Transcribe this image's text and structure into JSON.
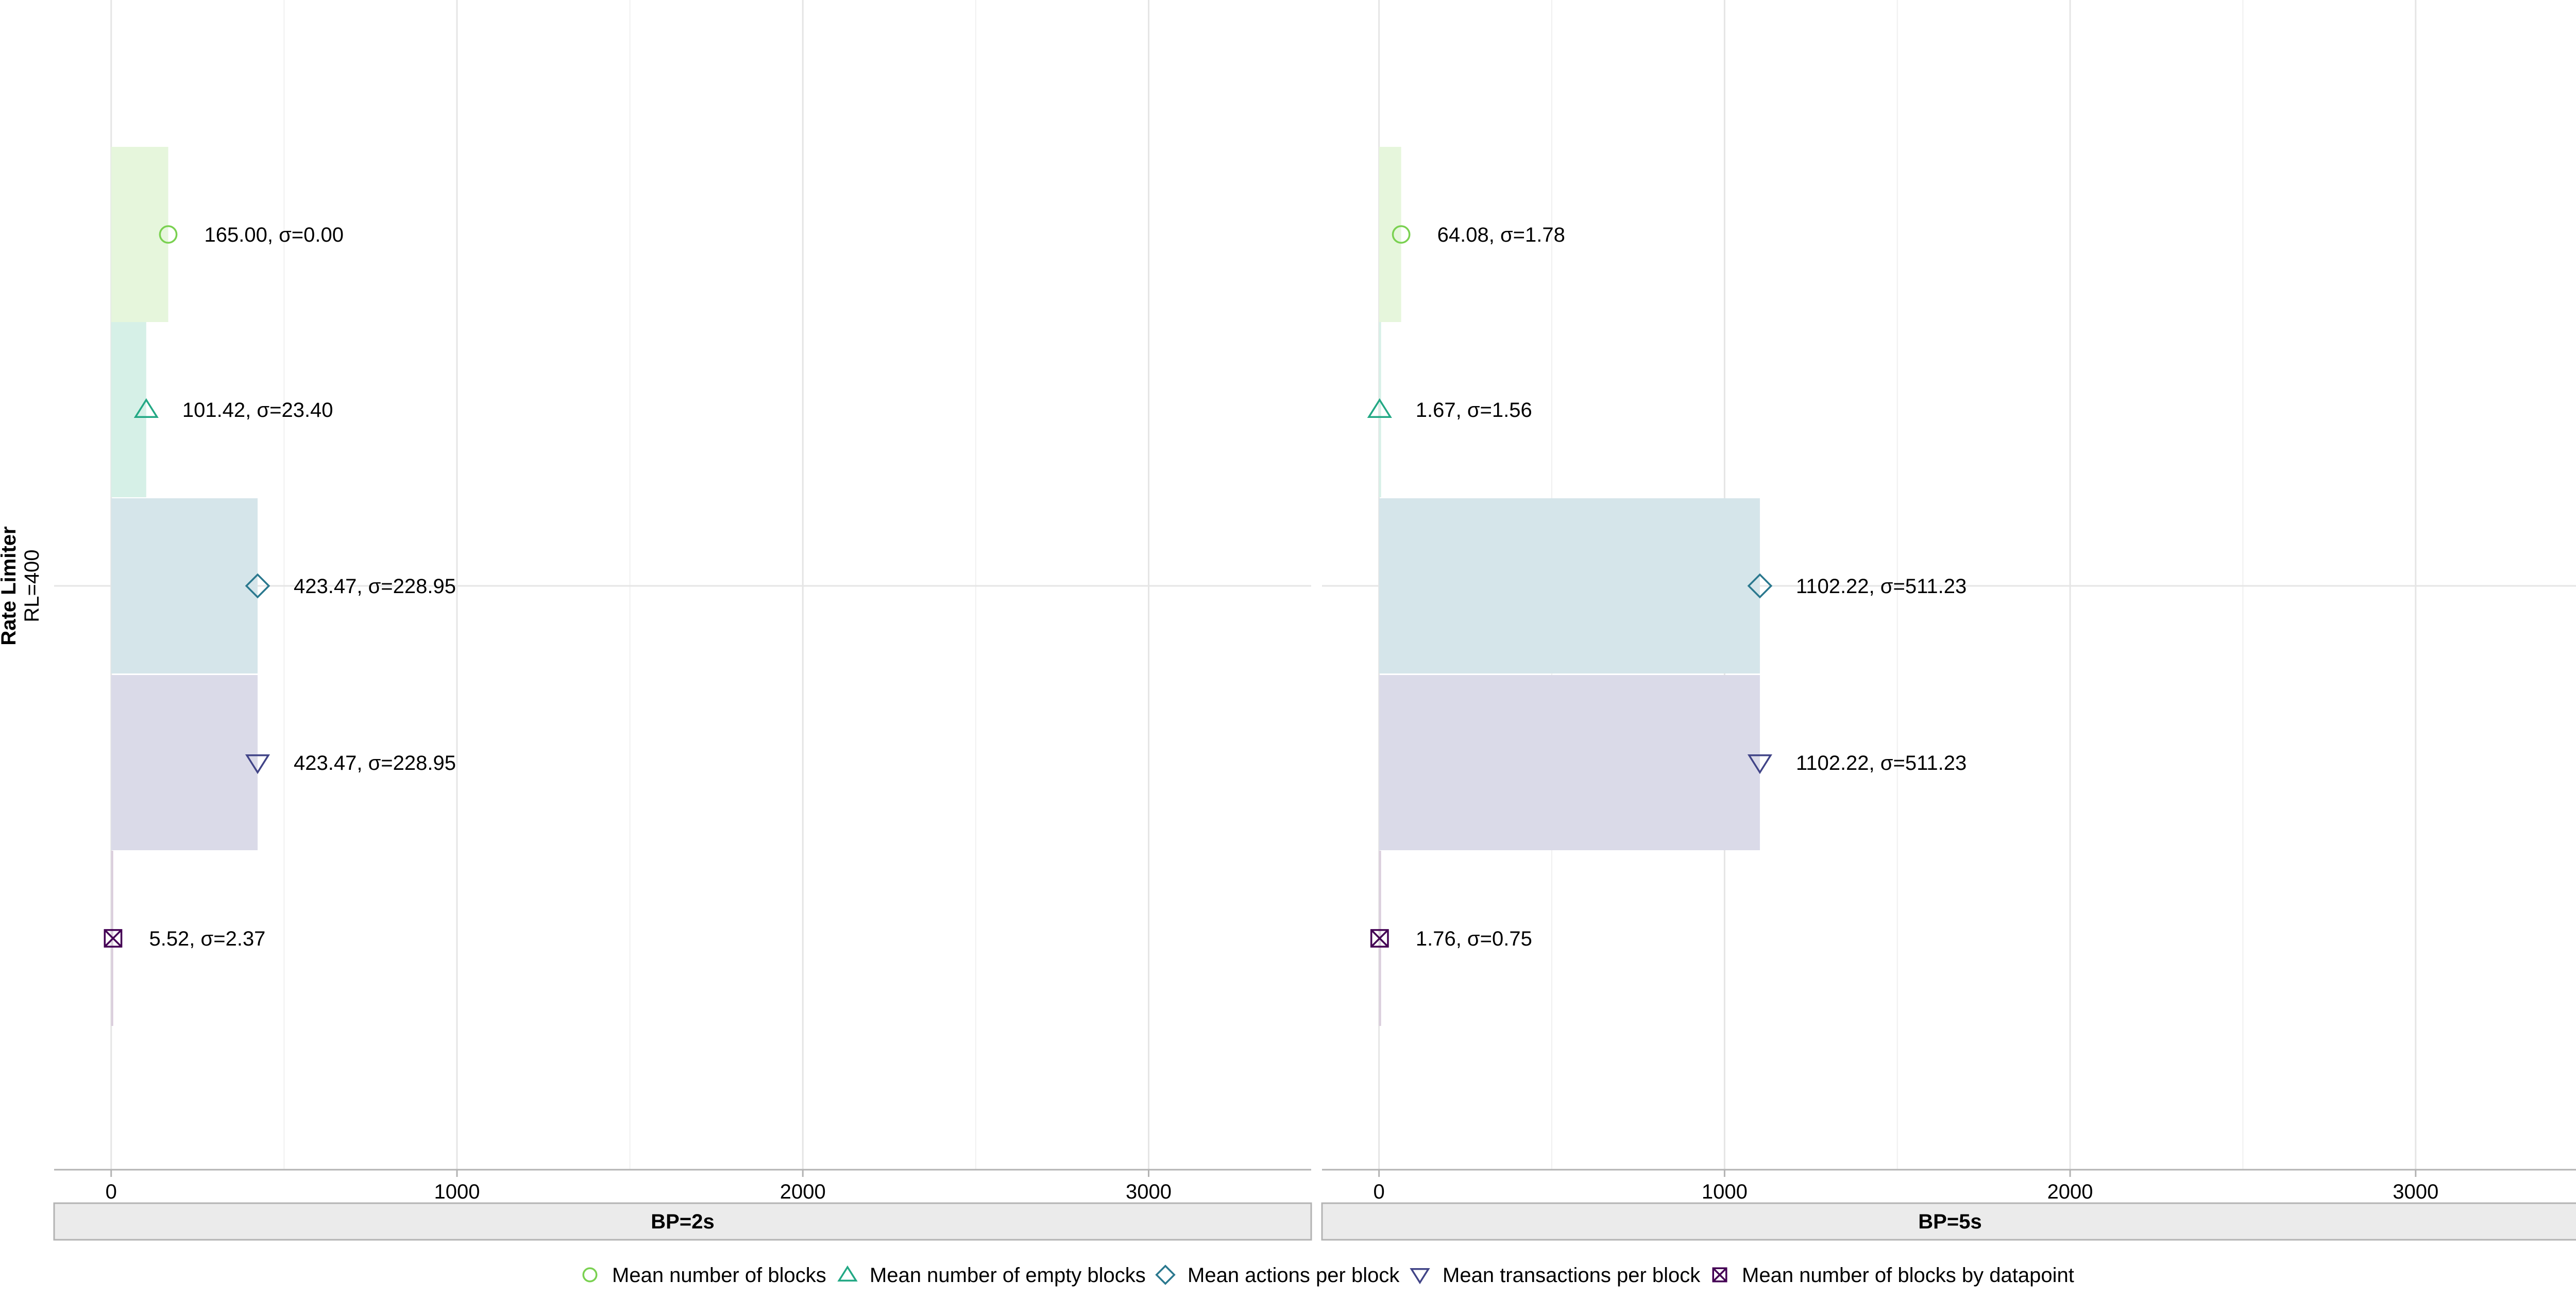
{
  "chart_data": {
    "type": "bar",
    "row_strip": {
      "title": "Rate Limiter",
      "label": "RL=400"
    },
    "x_ticks": [
      0,
      1000,
      2000,
      3000
    ],
    "xlim": [
      -165,
      3470
    ],
    "legend_position": "bottom",
    "series": [
      {
        "name": "Mean number of blocks",
        "color": "#7AD151",
        "fill": "#E6F6DC",
        "marker": "circle"
      },
      {
        "name": "Mean number of empty blocks",
        "color": "#22A884",
        "fill": "#D6F0E7",
        "marker": "triangle-up"
      },
      {
        "name": "Mean actions per block",
        "color": "#2A788E",
        "fill": "#D5E5EA",
        "marker": "diamond"
      },
      {
        "name": "Mean transactions per block",
        "color": "#414487",
        "fill": "#DADAE8",
        "marker": "triangle-down"
      },
      {
        "name": "Mean number of blocks by datapoint",
        "color": "#440154",
        "fill": "#DACDDC",
        "marker": "square-x"
      }
    ],
    "panels": [
      {
        "label": "BP=2s",
        "values": [
          165.0,
          101.42,
          423.47,
          423.47,
          5.52
        ],
        "labels": [
          "165.00, σ=0.00",
          "101.42, σ=23.40",
          "423.47, σ=228.95",
          "423.47, σ=228.95",
          "5.52, σ=2.37"
        ]
      },
      {
        "label": "BP=5s",
        "values": [
          64.08,
          1.67,
          1102.22,
          1102.22,
          1.76
        ],
        "labels": [
          "64.08, σ=1.78",
          "1.67, σ=1.56",
          "1102.22, σ=511.23",
          "1102.22, σ=511.23",
          "1.76, σ=0.75"
        ]
      }
    ]
  }
}
